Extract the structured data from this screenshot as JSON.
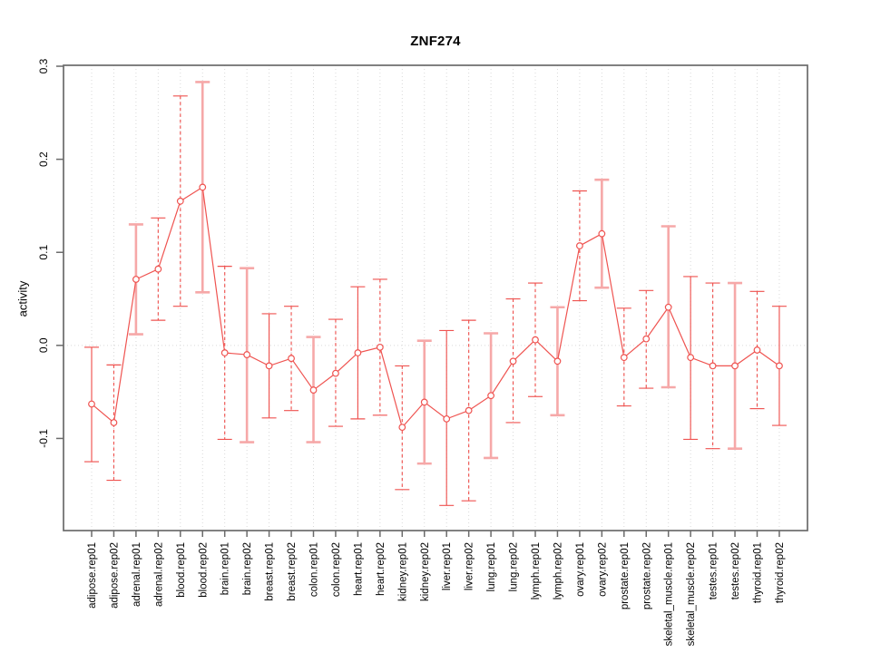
{
  "chart_data": {
    "type": "line",
    "title": "ZNF274",
    "xlabel": "",
    "ylabel": "activity",
    "legend": "none",
    "grid": "vertical-dotted",
    "zero_reference_line": true,
    "error_bars": true,
    "x_tick_labels_rotated": true,
    "ylim": [
      -0.199,
      0.301
    ],
    "yticks": [
      -0.1,
      0.0,
      0.1,
      0.2,
      0.3
    ],
    "ytick_labels": [
      "-0.1",
      "0.0",
      "0.1",
      "0.2",
      "0.3"
    ],
    "categories": [
      "adipose.rep01",
      "adipose.rep02",
      "adrenal.rep01",
      "adrenal.rep02",
      "blood.rep01",
      "blood.rep02",
      "brain.rep01",
      "brain.rep02",
      "breast.rep01",
      "breast.rep02",
      "colon.rep01",
      "colon.rep02",
      "heart.rep01",
      "heart.rep02",
      "kidney.rep01",
      "kidney.rep02",
      "liver.rep01",
      "liver.rep02",
      "lung.rep01",
      "lung.rep02",
      "lymph.rep01",
      "lymph.rep02",
      "ovary.rep01",
      "ovary.rep02",
      "prostate.rep01",
      "prostate.rep02",
      "skeletal_muscle.rep01",
      "skeletal_muscle.rep02",
      "testes.rep01",
      "testes.rep02",
      "thyroid.rep01",
      "thyroid.rep02"
    ],
    "series": [
      {
        "name": "activity",
        "values": [
          -0.063,
          -0.083,
          0.071,
          0.082,
          0.155,
          0.17,
          -0.008,
          -0.01,
          -0.022,
          -0.014,
          -0.048,
          -0.03,
          -0.008,
          -0.002,
          -0.088,
          -0.061,
          -0.079,
          -0.07,
          -0.054,
          -0.017,
          0.006,
          -0.017,
          0.107,
          0.12,
          -0.013,
          0.007,
          0.041,
          -0.013,
          -0.022,
          -0.022,
          -0.005,
          -0.022
        ],
        "error_low": [
          -0.125,
          -0.145,
          0.012,
          0.027,
          0.042,
          0.057,
          -0.101,
          -0.104,
          -0.078,
          -0.07,
          -0.104,
          -0.087,
          -0.079,
          -0.075,
          -0.155,
          -0.127,
          -0.172,
          -0.167,
          -0.121,
          -0.083,
          -0.055,
          -0.075,
          0.048,
          0.062,
          -0.065,
          -0.046,
          -0.045,
          -0.101,
          -0.111,
          -0.111,
          -0.068,
          -0.086
        ],
        "error_high": [
          -0.002,
          -0.021,
          0.13,
          0.137,
          0.268,
          0.283,
          0.085,
          0.083,
          0.034,
          0.042,
          0.009,
          0.028,
          0.063,
          0.071,
          -0.022,
          0.005,
          0.016,
          0.027,
          0.013,
          0.05,
          0.067,
          0.041,
          0.166,
          0.178,
          0.04,
          0.059,
          0.128,
          0.074,
          0.067,
          0.067,
          0.058,
          0.042
        ],
        "bar_styles": [
          "solid-red",
          "dashed-red",
          "solid-pink",
          "dashed-red",
          "dashed-red",
          "solid-pink",
          "dashed-red",
          "solid-pink",
          "solid-red",
          "dashed-red",
          "solid-pink",
          "dashed-red",
          "solid-red",
          "dashed-red",
          "dashed-red",
          "solid-pink",
          "solid-red",
          "dashed-red",
          "solid-pink",
          "dashed-red",
          "dashed-red",
          "solid-pink",
          "dashed-red",
          "solid-pink",
          "dashed-red",
          "dashed-red",
          "solid-pink",
          "solid-red",
          "dashed-red",
          "solid-pink",
          "dashed-red",
          "solid-red"
        ]
      }
    ],
    "colors": {
      "line_red": "#ef5350",
      "bar_pink": "#f6a8a8",
      "grid_gray": "#d9d9d9",
      "frame_gray": "#6b6b6b",
      "point_fill": "#ffffff",
      "text": "#000000"
    }
  }
}
